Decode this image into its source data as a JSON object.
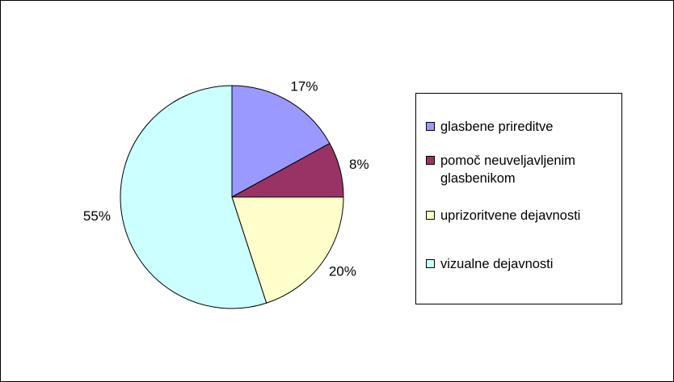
{
  "chart_data": {
    "type": "pie",
    "categories": [
      "glasbene prireditve",
      "pomoč neuveljavljenim glasbenikom",
      "uprizoritvene dejavnosti",
      "vizualne dejavnosti"
    ],
    "values": [
      17,
      8,
      20,
      55
    ],
    "value_labels": [
      "17%",
      "8%",
      "20%",
      "55%"
    ],
    "colors": [
      "#9999ff",
      "#993366",
      "#ffffcc",
      "#ccffff"
    ],
    "legend": "right"
  }
}
